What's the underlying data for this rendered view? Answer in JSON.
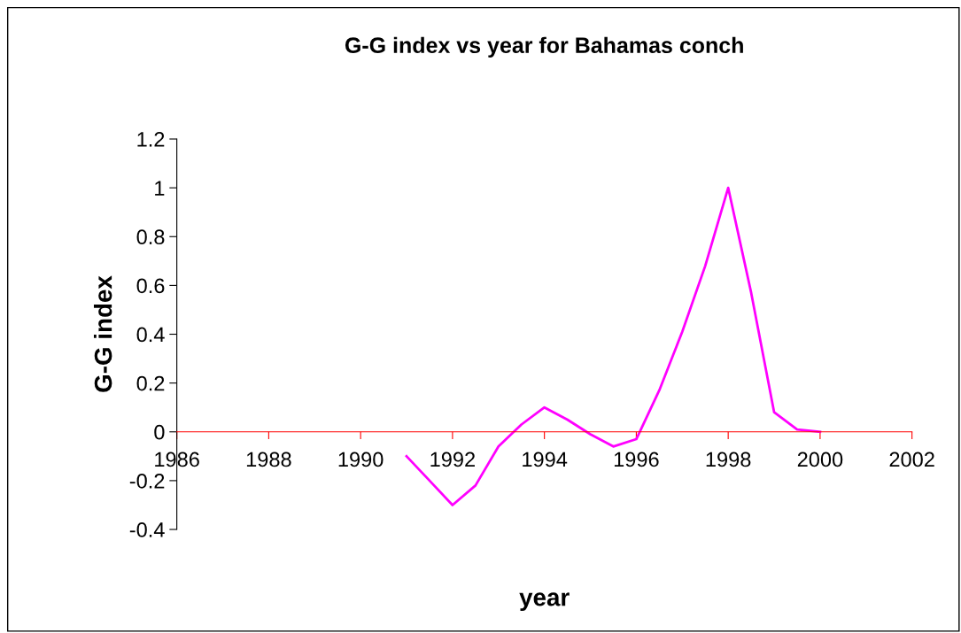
{
  "chart_data": {
    "type": "line",
    "title": "G-G index vs year for Bahamas conch",
    "xlabel": "year",
    "ylabel": "G-G index",
    "x": [
      1991,
      1991.5,
      1992,
      1992.5,
      1993,
      1993.5,
      1994,
      1994.5,
      1995,
      1995.5,
      1996,
      1996.5,
      1997,
      1997.5,
      1998,
      1998.5,
      1999,
      1999.5,
      2000
    ],
    "series": [
      {
        "color": "#ff00ff",
        "values": [
          -0.1,
          -0.2,
          -0.3,
          -0.22,
          -0.06,
          0.03,
          0.1,
          0.05,
          -0.01,
          -0.06,
          -0.03,
          0.17,
          0.41,
          0.68,
          1.0,
          0.57,
          0.08,
          0.01,
          0.0
        ]
      }
    ],
    "xlim": [
      1986,
      2002
    ],
    "xticks": [
      1986,
      1988,
      1990,
      1992,
      1994,
      1996,
      1998,
      2000,
      2002
    ],
    "ylim": [
      -0.4,
      1.2
    ],
    "yticks": [
      -0.4,
      -0.2,
      0,
      0.2,
      0.4,
      0.6,
      0.8,
      1,
      1.2
    ],
    "grid": false,
    "legend": false,
    "marker": "none",
    "line_style": "solid"
  }
}
